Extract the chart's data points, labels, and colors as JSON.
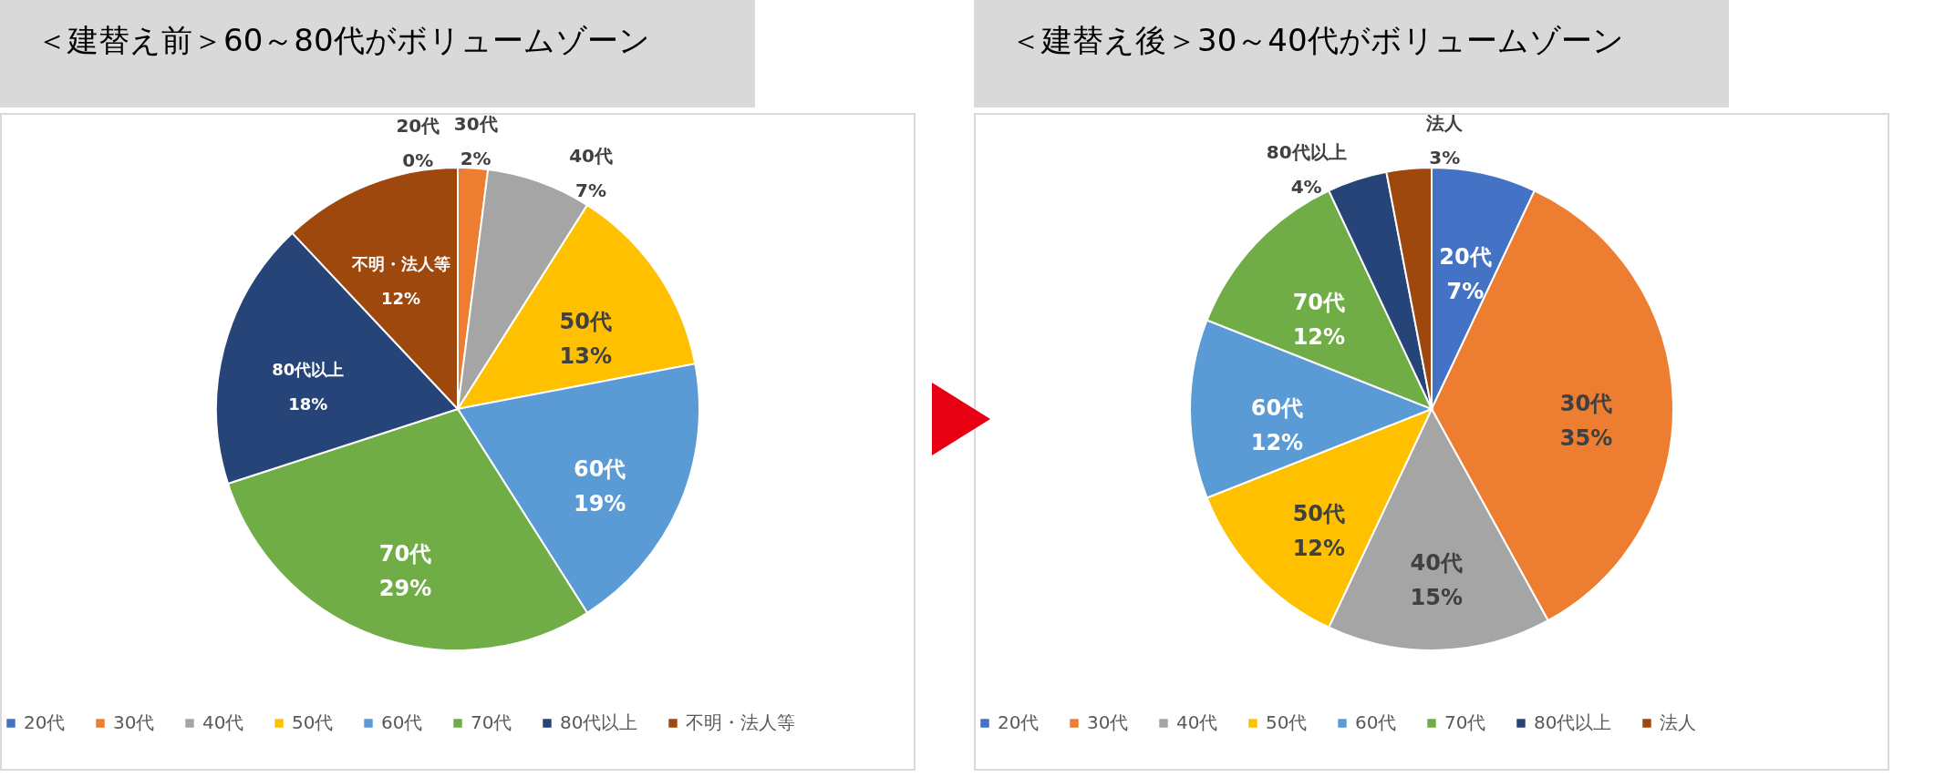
{
  "chart_data": [
    {
      "type": "pie",
      "title": "＜建替え前＞60～80代がボリュームゾーン",
      "categories": [
        "20代",
        "30代",
        "40代",
        "50代",
        "60代",
        "70代",
        "80代以上",
        "不明・法人等"
      ],
      "values": [
        0,
        2,
        7,
        13,
        19,
        29,
        18,
        12
      ],
      "colors": [
        "#4472c4",
        "#ed7d31",
        "#a5a5a5",
        "#ffc000",
        "#5b9bd5",
        "#70ad47",
        "#264478",
        "#9e480e"
      ],
      "value_labels": [
        "0%",
        "2%",
        "7%",
        "13%",
        "19%",
        "29%",
        "18%",
        "12%"
      ],
      "data_labels": true,
      "legend": "bottom"
    },
    {
      "type": "pie",
      "title": "＜建替え後＞30～40代がボリュームゾーン",
      "categories": [
        "20代",
        "30代",
        "40代",
        "50代",
        "60代",
        "70代",
        "80代以上",
        "法人"
      ],
      "values": [
        7,
        35,
        15,
        12,
        12,
        12,
        4,
        3
      ],
      "colors": [
        "#4472c4",
        "#ed7d31",
        "#a5a5a5",
        "#ffc000",
        "#5b9bd5",
        "#70ad47",
        "#264478",
        "#9e480e"
      ],
      "value_labels": [
        "7%",
        "35%",
        "15%",
        "12%",
        "12%",
        "12%",
        "4%",
        "3%"
      ],
      "data_labels": true,
      "legend": "bottom"
    }
  ]
}
